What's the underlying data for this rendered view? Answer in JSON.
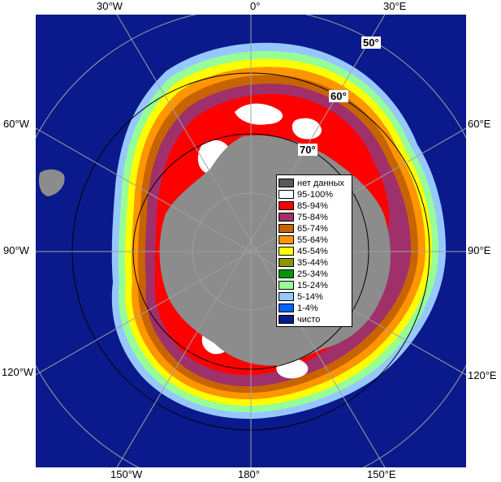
{
  "map": {
    "edge_labels": {
      "top_left": "30°W",
      "top_center": "0°",
      "top_right": "30°E",
      "left_upper": "60°W",
      "left_middle": "90°W",
      "left_lower": "120°W",
      "right_upper": "60°E",
      "right_middle": "90°E",
      "right_lower": "120°E",
      "bottom_left": "150°W",
      "bottom_center": "180°",
      "bottom_right": "150°E"
    },
    "latitude_labels": {
      "lat_50": "50°",
      "lat_60": "60°",
      "lat_70": "70°"
    },
    "colors": {
      "ocean": "#0a1a8c",
      "land": "#8c8c8c",
      "land_dark": "#5a5a5a",
      "grid": "#a0a0a0",
      "ice_95_100": "#ffffff",
      "ice_85_94": "#ff0000",
      "ice_75_84": "#a0306a",
      "ice_65_74": "#c86400",
      "ice_55_64": "#ff9600",
      "ice_45_54": "#ffff00",
      "ice_35_44": "#8c9600",
      "ice_25_34": "#009600",
      "ice_15_24": "#96ff96",
      "ice_5_14": "#96c8ff",
      "ice_1_4": "#0064ff"
    }
  },
  "legend": {
    "items": [
      {
        "label": "нет данных",
        "color": "#5a5a5a"
      },
      {
        "label": "95-100%",
        "color": "#ffffff"
      },
      {
        "label": "85-94%",
        "color": "#ff0000"
      },
      {
        "label": "75-84%",
        "color": "#a0306a"
      },
      {
        "label": "65-74%",
        "color": "#c86400"
      },
      {
        "label": "55-64%",
        "color": "#ff9600"
      },
      {
        "label": "45-54%",
        "color": "#ffff00"
      },
      {
        "label": "35-44%",
        "color": "#8c9600"
      },
      {
        "label": "25-34%",
        "color": "#009600"
      },
      {
        "label": "15-24%",
        "color": "#96ff96"
      },
      {
        "label": "5-14%",
        "color": "#96c8ff"
      },
      {
        "label": "1-4%",
        "color": "#0064ff"
      },
      {
        "label": "чисто",
        "color": "#0a1a8c"
      }
    ]
  }
}
